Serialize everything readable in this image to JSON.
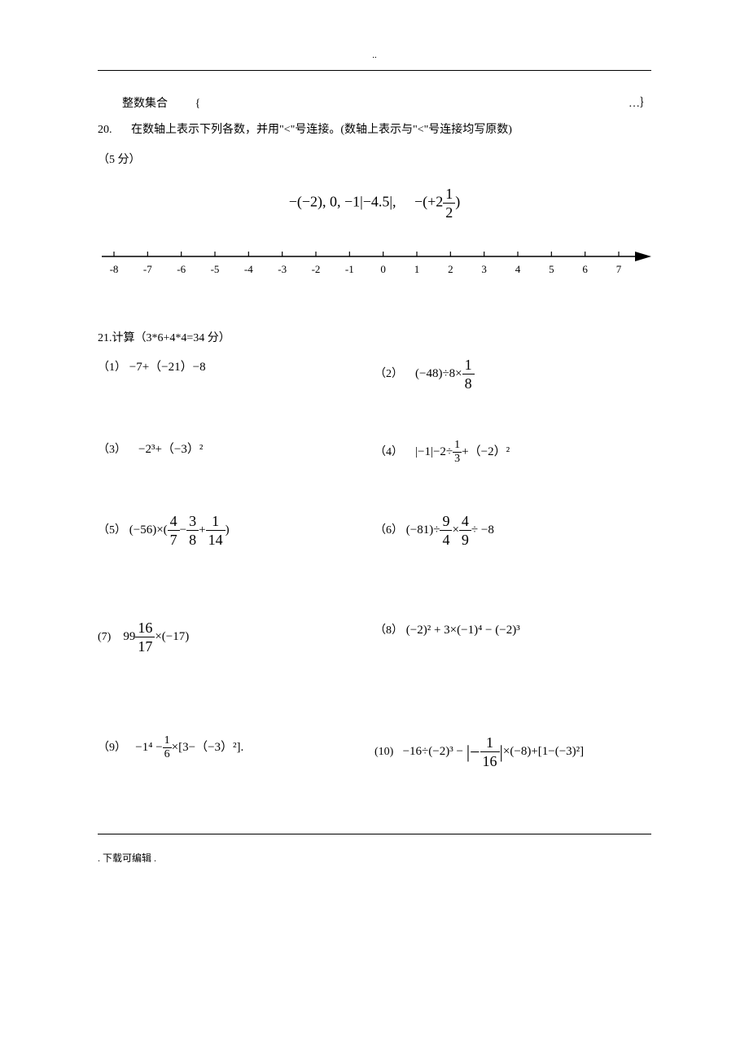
{
  "header": {
    "dots": ".."
  },
  "integer_set": {
    "label": "整数集合",
    "open_brace": "{",
    "close": "…｝"
  },
  "q20": {
    "num": "20.",
    "text": "在数轴上表示下列各数，并用\"<\"号连接。(数轴上表示与\"<\"号连接均写原数)",
    "points": "（5 分）",
    "expr_prefix": "−(−2),  0,   −1|−4.5|,",
    "expr_suffix_before": "−(+2",
    "expr_suffix_after": ")",
    "frac_top": "1",
    "frac_bot": "2"
  },
  "number_line": {
    "ticks": [
      -8,
      -7,
      -6,
      -5,
      -4,
      -3,
      -2,
      -1,
      0,
      1,
      2,
      3,
      4,
      5,
      6,
      7
    ],
    "axis_color": "#000000",
    "tick_height": 8,
    "font_size": 13
  },
  "q21": {
    "title": "21.计算（3*6+4*4=34 分）",
    "items": [
      {
        "num": "（1）",
        "left": "−7+（−21）−8",
        "num2": "（2）",
        "right_pre": "(−48)÷8×",
        "r_frac_n": "1",
        "r_frac_d": "8"
      },
      {
        "num": "（3）",
        "left": "−2³+（−3）²",
        "num2": "（4）",
        "right_pre": "|−1|−2÷",
        "r_mid_frac_n": "1",
        "r_mid_frac_d": "3",
        "right_post": "+（−2）²"
      },
      {
        "num": "（5）",
        "left_pre": "(−56)×(",
        "l_f1n": "4",
        "l_f1d": "7",
        "l_op1": "−",
        "l_f2n": "3",
        "l_f2d": "8",
        "l_op2": "+",
        "l_f3n": "1",
        "l_f3d": "14",
        "left_post": ")",
        "num2": "（6）",
        "right_pre": "(−81)÷",
        "r_f1n": "9",
        "r_f1d": "4",
        "r_op": "×",
        "r_f2n": "4",
        "r_f2d": "9",
        "right_post": "÷ −8"
      },
      {
        "num": "(7)",
        "left_pre": "99",
        "l_frac_n": "16",
        "l_frac_d": "17",
        "left_post": "×(−17)",
        "num2": "（8）",
        "right": "(−2)² + 3×(−1)⁴ − (−2)³"
      },
      {
        "num": "（9）",
        "left_pre": "−1⁴ −",
        "l_frac_n": "1",
        "l_frac_d": "6",
        "left_post": "×[3−（−3）²].",
        "num2": "(10)",
        "right_pre": "−16÷(−2)³ − ",
        "right_abs_pre": "|−",
        "r_frac_n": "1",
        "r_frac_d": "16",
        "right_abs_post": "|",
        "right_post": "×(−8)+[1−(−3)²]"
      }
    ]
  },
  "footer": ". 下载可编辑 ."
}
